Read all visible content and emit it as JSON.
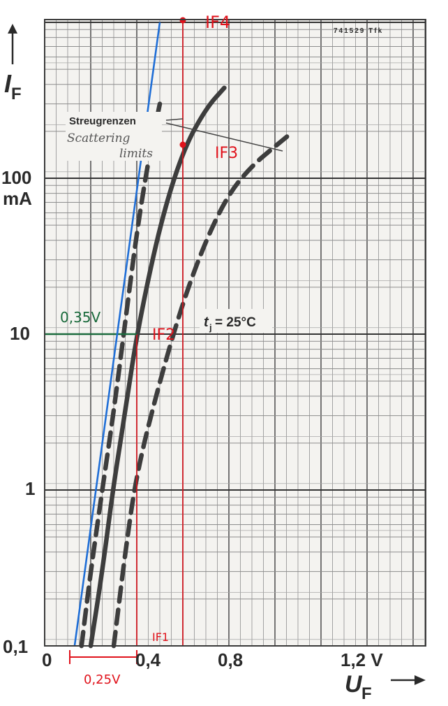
{
  "chart_data": {
    "type": "line",
    "x_axis": {
      "label": "U",
      "label_sub": "F",
      "unit": "V",
      "ticks": [
        "0",
        "0,4",
        "0,8",
        "1,2 V"
      ],
      "tick_values": [
        0,
        0.4,
        0.8,
        1.2
      ],
      "range": [
        0,
        1.2
      ],
      "scale": "linear"
    },
    "y_axis": {
      "label": "I",
      "label_sub": "F",
      "unit": "mA",
      "ticks": [
        "0,1",
        "1",
        "10",
        "100",
        "mA"
      ],
      "tick_values": [
        0.1,
        1,
        10,
        100
      ],
      "range": [
        0.1,
        1000
      ],
      "scale": "log"
    },
    "code": "741529 Tfk",
    "legend": {
      "de": "Streugrenzen",
      "en_line1": "Scattering",
      "en_line2": "limits"
    },
    "temperature_label": "t",
    "temperature_sub": "j",
    "temperature_value": "= 25°C",
    "series": [
      {
        "name": "left scattering limit",
        "style": "dashed",
        "x": [
          0.16,
          0.2,
          0.25,
          0.3,
          0.35,
          0.4,
          0.45,
          0.5
        ],
        "y": [
          0.1,
          0.3,
          1,
          3.2,
          12,
          45,
          130,
          300
        ]
      },
      {
        "name": "typical",
        "style": "solid",
        "x": [
          0.2,
          0.25,
          0.3,
          0.35,
          0.4,
          0.5,
          0.6,
          0.7,
          0.78
        ],
        "y": [
          0.1,
          0.3,
          1.1,
          3.2,
          10,
          50,
          150,
          280,
          380
        ]
      },
      {
        "name": "right scattering limit",
        "style": "dashed",
        "x": [
          0.3,
          0.35,
          0.4,
          0.5,
          0.6,
          0.7,
          0.8,
          0.9,
          1.0,
          1.08
        ],
        "y": [
          0.1,
          0.4,
          1.3,
          5,
          16,
          40,
          80,
          120,
          160,
          200
        ]
      }
    ],
    "annotations": {
      "tangent": {
        "color": "#1f6ed6",
        "x": [
          0.13,
          0.5
        ],
        "y": [
          0.1,
          1000
        ]
      },
      "voltage_note": "0,35V",
      "voltage_note_color": "#1a6b3c",
      "delta_note": "0,25V",
      "labels": [
        "IF4",
        "IF3",
        "IF2",
        "IF1"
      ],
      "marker_color": "#e0121b"
    }
  }
}
